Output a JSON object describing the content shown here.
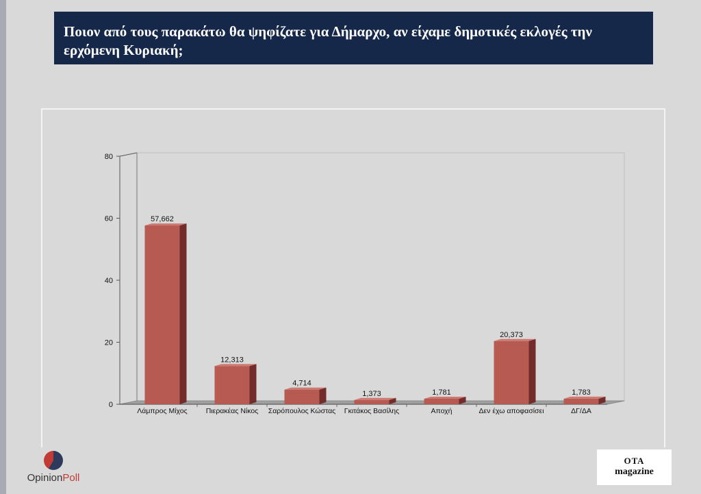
{
  "title": "Ποιον από τους παρακάτω θα ψηφίζατε για Δήμαρχο, αν είχαμε δημοτικές εκλογές την ερχόμενη Κυριακή;",
  "logos": {
    "opinion": "Opinion",
    "poll": "Poll",
    "ota_line1": "ΟΤΑ",
    "ota_line2": "magazine"
  },
  "colors": {
    "title_bg": "#16284a",
    "bar_front": "#b65a52",
    "bar_side": "#722d2b",
    "bar_top": "#cd7a72",
    "background": "#d9d9d9"
  },
  "chart_data": {
    "type": "bar",
    "categories": [
      "Λάμπρος Μίχος",
      "Πιερακέας Νίκος",
      "Σαρόπουλος Κώστας",
      "Γκιτάκος Βασίλης",
      "Αποχή",
      "Δεν έχω αποφασίσει",
      "ΔΓ/ΔΑ"
    ],
    "values": [
      57.662,
      12.313,
      4.714,
      1.373,
      1.781,
      20.373,
      1.783
    ],
    "value_labels": [
      "57,662",
      "12,313",
      "4,714",
      "1,373",
      "1,781",
      "20,373",
      "1,783"
    ],
    "ylim": [
      0,
      80
    ],
    "yticks": [
      0,
      20,
      40,
      60,
      80
    ],
    "grid": false,
    "legend": "none"
  }
}
